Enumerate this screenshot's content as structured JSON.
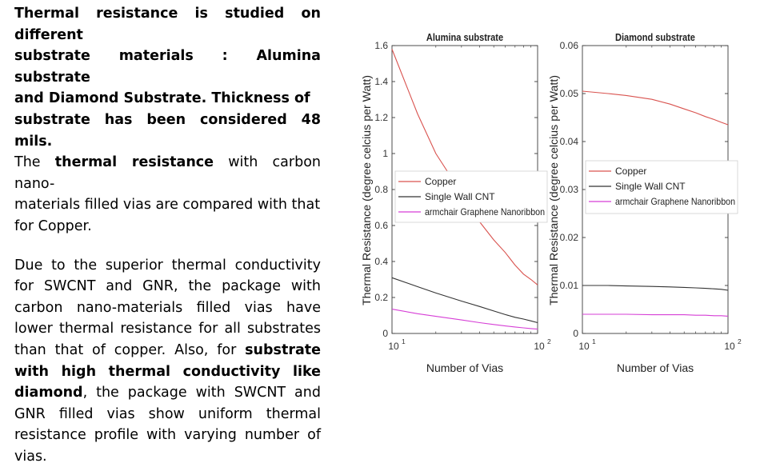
{
  "slide_text": {
    "para1": {
      "line1": "Thermal resistance is studied  on different",
      "line2": "substrate  materials  :  Alumina  substrate",
      "line3": "and  Diamond  Substrate.  Thickness  of",
      "line4": "substrate has been considered 48 mils.",
      "line5a": "The ",
      "line5b": "thermal resistance",
      "line5c": " with carbon nano-",
      "line6": "materials filled vias are compared with that",
      "line7": "for Copper."
    },
    "para2": {
      "s1": "Due to the superior thermal conductivity for SWCNT and GNR, the package with carbon nano-materials filled vias have lower thermal resistance for all substrates than that of copper. Also, for ",
      "s2": "substrate with high thermal conductivity like diamond",
      "s3": ", the package with SWCNT and GNR filled vias show uniform thermal resistance profile with varying number of vias."
    }
  },
  "chart_data": [
    {
      "type": "line",
      "title": "Alumina substrate",
      "xlabel": "Number of Vias",
      "ylabel": "Thermal Resistance (degree celcius per Watt)",
      "xscale": "log",
      "xlim": [
        10,
        100
      ],
      "ylim": [
        0,
        1.6
      ],
      "yticks": [
        "0",
        "0.2",
        "0.4",
        "0.6",
        "0.8",
        "1",
        "1.2",
        "1.4",
        "1.6"
      ],
      "ytick_values": [
        0,
        0.2,
        0.4,
        0.6,
        0.8,
        1,
        1.2,
        1.4,
        1.6
      ],
      "xticks": [
        {
          "base": "10",
          "exp": "1"
        },
        {
          "base": "10",
          "exp": "2"
        }
      ],
      "legend_position": "middle-left",
      "series": [
        {
          "name": "Copper",
          "color": "#d9534f",
          "x": [
            10,
            15,
            20,
            30,
            40,
            50,
            60,
            70,
            80,
            90,
            100
          ],
          "y": [
            1.58,
            1.22,
            1.0,
            0.78,
            0.62,
            0.52,
            0.45,
            0.38,
            0.33,
            0.3,
            0.27
          ]
        },
        {
          "name": "Single Wall CNT",
          "color": "#333333",
          "x": [
            10,
            15,
            20,
            30,
            40,
            50,
            60,
            70,
            80,
            90,
            100
          ],
          "y": [
            0.31,
            0.26,
            0.225,
            0.18,
            0.15,
            0.125,
            0.105,
            0.09,
            0.08,
            0.07,
            0.06
          ]
        },
        {
          "name": "armchair Graphene Nanoribbon",
          "color": "#d63fd6",
          "x": [
            10,
            15,
            20,
            30,
            40,
            50,
            60,
            70,
            80,
            90,
            100
          ],
          "y": [
            0.135,
            0.11,
            0.095,
            0.075,
            0.06,
            0.05,
            0.042,
            0.036,
            0.031,
            0.027,
            0.024
          ]
        }
      ]
    },
    {
      "type": "line",
      "title": "Diamond substrate",
      "xlabel": "Number of Vias",
      "ylabel": "Thermal Resistance (degree celcius per Watt)",
      "xscale": "log",
      "xlim": [
        10,
        100
      ],
      "ylim": [
        0,
        0.06
      ],
      "yticks": [
        "0",
        "0.01",
        "0.02",
        "0.03",
        "0.04",
        "0.05",
        "0.06"
      ],
      "ytick_values": [
        0,
        0.01,
        0.02,
        0.03,
        0.04,
        0.05,
        0.06
      ],
      "xticks": [
        {
          "base": "10",
          "exp": "1"
        },
        {
          "base": "10",
          "exp": "2"
        }
      ],
      "legend_position": "middle-left",
      "series": [
        {
          "name": "Copper",
          "color": "#d9534f",
          "x": [
            10,
            15,
            20,
            30,
            40,
            50,
            60,
            70,
            80,
            90,
            100
          ],
          "y": [
            0.0505,
            0.05,
            0.0496,
            0.0488,
            0.0478,
            0.0468,
            0.046,
            0.0452,
            0.0446,
            0.044,
            0.0435
          ]
        },
        {
          "name": "Single Wall CNT",
          "color": "#333333",
          "x": [
            10,
            15,
            20,
            30,
            40,
            50,
            60,
            70,
            80,
            90,
            100
          ],
          "y": [
            0.01,
            0.01,
            0.0099,
            0.0098,
            0.0097,
            0.0096,
            0.0095,
            0.0094,
            0.0093,
            0.0092,
            0.009
          ]
        },
        {
          "name": "armchair Graphene Nanoribbon",
          "color": "#d63fd6",
          "x": [
            10,
            15,
            20,
            30,
            40,
            50,
            60,
            70,
            80,
            90,
            100
          ],
          "y": [
            0.004,
            0.004,
            0.004,
            0.0039,
            0.0039,
            0.0039,
            0.0038,
            0.0038,
            0.0037,
            0.0037,
            0.0036
          ]
        }
      ]
    }
  ]
}
